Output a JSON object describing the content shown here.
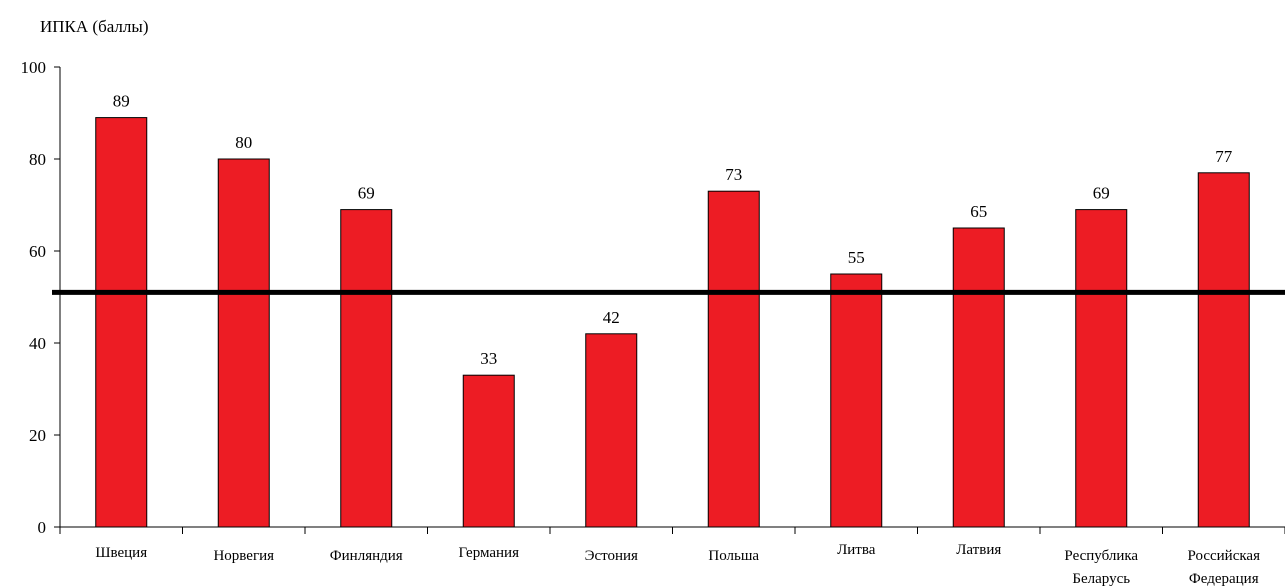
{
  "chart_data": {
    "type": "bar",
    "ylabel": "ИПКА (баллы)",
    "categories": [
      [
        "Швеция"
      ],
      [
        "Норвегия"
      ],
      [
        "Финляндия"
      ],
      [
        "Германия"
      ],
      [
        "Эстония"
      ],
      [
        "Польша"
      ],
      [
        "Литва"
      ],
      [
        "Латвия"
      ],
      [
        "Республика",
        "Беларусь"
      ],
      [
        "Российская",
        "Федерация"
      ]
    ],
    "values": [
      89,
      80,
      69,
      33,
      42,
      73,
      55,
      65,
      69,
      77
    ],
    "data_labels": [
      "89",
      "80",
      "69",
      "33",
      "42",
      "73",
      "55",
      "65",
      "69",
      "77"
    ],
    "ylim": [
      0,
      100
    ],
    "yticks": [
      0,
      20,
      40,
      60,
      80,
      100
    ],
    "ytick_labels": [
      "0",
      "20",
      "40",
      "60",
      "80",
      "100"
    ],
    "reference_line": 51,
    "grid": false,
    "legend": "none",
    "colors": {
      "bar_fill": "#ED1C24",
      "bar_stroke": "#000000",
      "reference_line": "#000000"
    }
  }
}
